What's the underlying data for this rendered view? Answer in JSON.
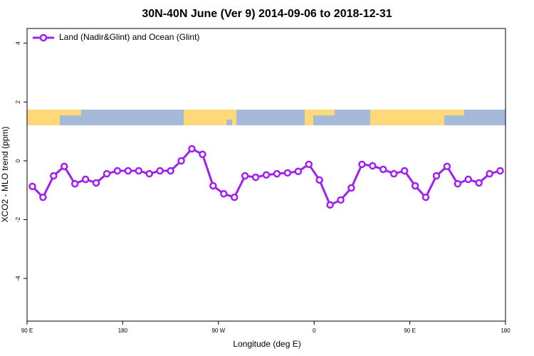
{
  "chart_data": {
    "type": "line",
    "title": "30N-40N June (Ver 9)   2014-09-06 to 2018-12-31",
    "xlabel": "Longitude (deg E)",
    "ylabel": "XCO2 - MLO trend (ppm)",
    "x": [
      95,
      105,
      115,
      125,
      135,
      145,
      155,
      165,
      175,
      185,
      195,
      205,
      215,
      225,
      235,
      245,
      255,
      265,
      275,
      285,
      295,
      305,
      315,
      325,
      335,
      345,
      355,
      365,
      375,
      385,
      395,
      405,
      415,
      425,
      435,
      445,
      455,
      465,
      475,
      485,
      495,
      505,
      515,
      525,
      535
    ],
    "series": [
      {
        "name": "Land (Nadir&Glint) and Ocean (Glint)",
        "color": "#a020f0",
        "values": [
          -0.87,
          -1.24,
          -0.51,
          -0.19,
          -0.78,
          -0.63,
          -0.75,
          -0.44,
          -0.34,
          -0.34,
          -0.34,
          -0.44,
          -0.34,
          -0.34,
          0.0,
          0.41,
          0.22,
          -0.85,
          -1.12,
          -1.24,
          -0.51,
          -0.56,
          -0.48,
          -0.44,
          -0.41,
          -0.36,
          -0.12,
          -0.65,
          -1.5,
          -1.33,
          -0.92,
          -0.12,
          -0.17,
          -0.29,
          -0.44,
          -0.34,
          -0.85,
          -1.24,
          -0.51,
          -0.19,
          -0.78,
          -0.63,
          -0.75,
          -0.44,
          -0.34
        ]
      }
    ],
    "xlim": [
      90,
      540
    ],
    "xticks": [
      {
        "value": 90,
        "label": "90 E"
      },
      180,
      {
        "value": 270,
        "label": "90 W"
      },
      {
        "value": 360,
        "label": "0"
      },
      {
        "value": 450,
        "label": "90 E"
      },
      {
        "value": 540,
        "label": "180"
      }
    ],
    "ylim": [
      -5.45,
      4.5
    ],
    "yticks": [
      -4,
      -2,
      0,
      2,
      4
    ],
    "legend": "top-left"
  }
}
